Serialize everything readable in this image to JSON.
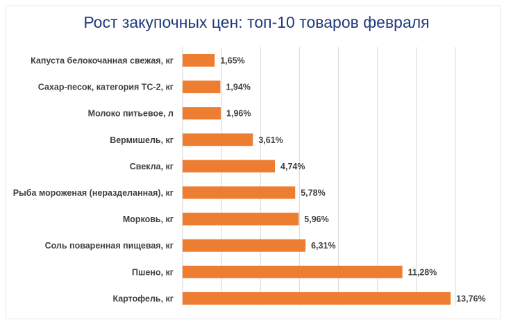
{
  "colors": {
    "bar": "#ed7d31",
    "title": "#1f3a7a",
    "grid": "#d9d9d9",
    "text": "#404040"
  },
  "chart_data": {
    "type": "bar",
    "orientation": "horizontal",
    "title": "Рост закупочных цен: топ-10 товаров февраля",
    "xlabel": "",
    "ylabel": "",
    "xlim": [
      0,
      14
    ],
    "grid": true,
    "legend": "none",
    "categories": [
      "Капуста белокочанная свежая, кг",
      "Сахар-песок, категория ТС-2, кг",
      "Молоко питьевое, л",
      "Вермишель, кг",
      "Свекла, кг",
      "Рыба мороженая (неразделанная), кг",
      "Морковь, кг",
      "Соль поваренная пищевая, кг",
      "Пшено, кг",
      "Картофель, кг"
    ],
    "values": [
      1.65,
      1.94,
      1.96,
      3.61,
      4.74,
      5.78,
      5.96,
      6.31,
      11.28,
      13.76
    ],
    "value_labels": [
      "1,65%",
      "1,94%",
      "1,96%",
      "3,61%",
      "4,74%",
      "5,78%",
      "5,96%",
      "6,31%",
      "11,28%",
      "13,76%"
    ]
  }
}
